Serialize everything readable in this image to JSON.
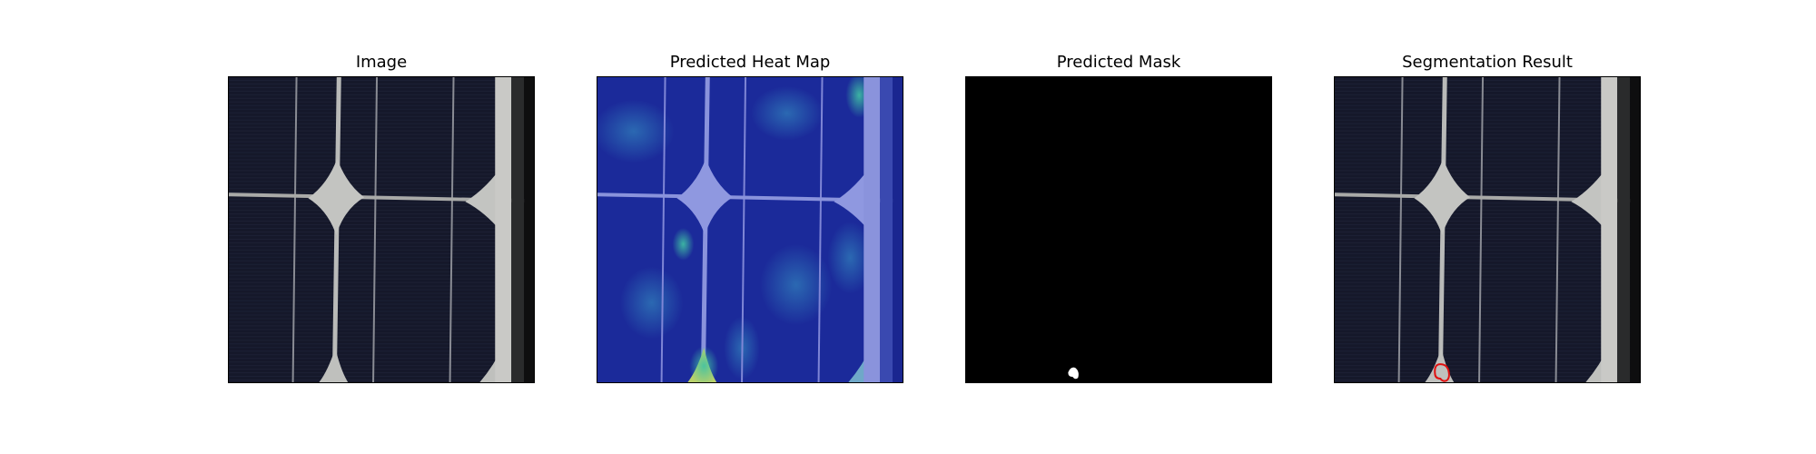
{
  "panels": [
    {
      "id": "image",
      "title": "Image"
    },
    {
      "id": "heatmap",
      "title": "Predicted Heat Map"
    },
    {
      "id": "mask",
      "title": "Predicted Mask"
    },
    {
      "id": "segmentation",
      "title": "Segmentation Result"
    }
  ],
  "colors": {
    "cell_background": "#15182a",
    "busbar": "#c9c9c6",
    "heatmap_base": "#1a2ea0",
    "heatmap_hot": "#40c0a0",
    "mask_background": "#000000",
    "mask_foreground": "#ffffff",
    "contour": "#e01010"
  }
}
